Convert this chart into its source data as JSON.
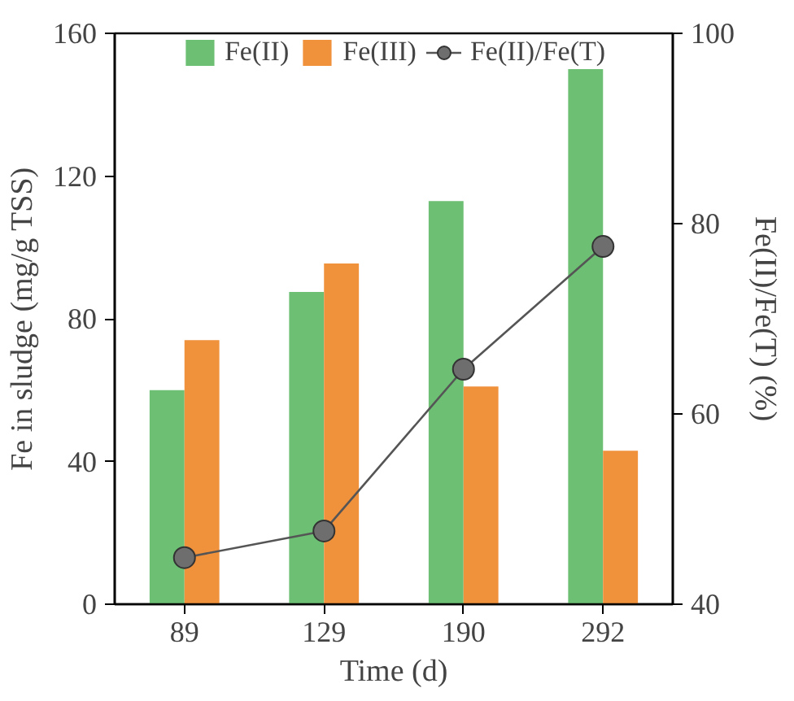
{
  "chart_data": {
    "type": "bar",
    "xlabel": "Time (d)",
    "ylabel": "Fe in sludge (mg/g TSS)",
    "y2label": "Fe(II)/Fe(T) (%)",
    "categories": [
      "89",
      "129",
      "190",
      "292"
    ],
    "ylim": [
      0,
      160
    ],
    "yticks": [
      0,
      40,
      80,
      120,
      160
    ],
    "y2lim": [
      40,
      100
    ],
    "y2ticks": [
      40,
      60,
      80,
      100
    ],
    "legend": "top",
    "grid": false,
    "series": [
      {
        "name": "Fe(II)",
        "color": "#6dbf74",
        "values": [
          60,
          87.5,
          113,
          150
        ]
      },
      {
        "name": "Fe(III)",
        "color": "#f0913c",
        "values": [
          74,
          95.5,
          61,
          43
        ]
      },
      {
        "name": "Fe(II)/Fe(T)",
        "type": "line",
        "axis": "y2",
        "marker": "circle",
        "color": "#555555",
        "values": [
          44.9,
          47.7,
          64.7,
          77.6
        ]
      }
    ]
  }
}
